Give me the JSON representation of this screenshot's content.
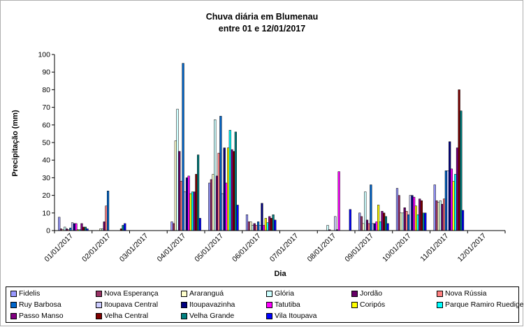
{
  "chart_data": {
    "type": "bar",
    "title": [
      "Chuva diária em Blumenau",
      "entre 01 e 12/01/2017"
    ],
    "xlabel": "Dia",
    "ylabel": "Precipitação (mm)",
    "ylim": [
      0,
      100
    ],
    "yticks": [
      0,
      10,
      20,
      30,
      40,
      50,
      60,
      70,
      80,
      90,
      100
    ],
    "grid": false,
    "legend_position": "bottom",
    "categories": [
      "01/01/2017",
      "02/01/2017",
      "03/01/2017",
      "04/01/2017",
      "05/01/2017",
      "06/01/2017",
      "07/01/2017",
      "08/01/2017",
      "09/01/2017",
      "10/01/2017",
      "11/01/2017",
      "12/01/2017"
    ],
    "series": [
      {
        "name": "Fidelis",
        "color": "#9999ff",
        "values": [
          7.6,
          0,
          0,
          5,
          27,
          9,
          0,
          0,
          10,
          24,
          26,
          0
        ]
      },
      {
        "name": "Nova Esperança",
        "color": "#993366",
        "values": [
          1,
          0,
          0,
          4,
          29,
          5,
          0,
          0,
          8,
          20,
          17,
          0
        ]
      },
      {
        "name": "Araranguá",
        "color": "#ffffcc",
        "values": [
          0.5,
          1,
          0,
          51,
          32,
          5,
          0,
          0,
          4,
          10,
          16,
          0
        ]
      },
      {
        "name": "Glória",
        "color": "#ccffff",
        "values": [
          2,
          1,
          0,
          69,
          63,
          3,
          0,
          3,
          22,
          10,
          17,
          0
        ]
      },
      {
        "name": "Jordão",
        "color": "#660066",
        "values": [
          1,
          5,
          0,
          45,
          31,
          4,
          0,
          0.5,
          6,
          13,
          15,
          0
        ]
      },
      {
        "name": "Nova Rússia",
        "color": "#ff8080",
        "values": [
          0.5,
          14,
          0,
          28,
          44,
          3,
          0,
          0,
          4,
          11,
          18,
          0
        ]
      },
      {
        "name": "Ruy Barbosa",
        "color": "#0066cc",
        "values": [
          1.5,
          22.5,
          0,
          95,
          65,
          5,
          0,
          0,
          26,
          9,
          34,
          0
        ]
      },
      {
        "name": "Itoupava Central",
        "color": "#ccccff",
        "values": [
          4.5,
          0,
          0,
          22,
          21,
          3,
          0,
          8,
          4,
          20,
          34,
          0
        ]
      },
      {
        "name": "Itoupavazinha",
        "color": "#000080",
        "values": [
          4,
          0,
          0,
          30,
          47,
          15.5,
          0,
          0.5,
          4,
          20,
          50.5,
          0
        ]
      },
      {
        "name": "Tatutiba",
        "color": "#ff00ff",
        "values": [
          4,
          0,
          0,
          31,
          27,
          3,
          0,
          33.5,
          5,
          19,
          35,
          0
        ]
      },
      {
        "name": "Coripós",
        "color": "#ffff00",
        "values": [
          0.5,
          0,
          0,
          21,
          47,
          7,
          0,
          0,
          14.5,
          14,
          28,
          0
        ]
      },
      {
        "name": "Parque Ramiro Ruediger",
        "color": "#00ffff",
        "values": [
          0.5,
          0,
          0,
          22,
          57,
          4.5,
          0,
          0,
          5,
          9,
          32,
          0
        ]
      },
      {
        "name": "Passo Manso",
        "color": "#800080",
        "values": [
          4,
          0,
          0,
          22,
          46,
          8,
          0,
          0,
          11,
          18,
          47,
          0
        ]
      },
      {
        "name": "Velha Central",
        "color": "#800000",
        "values": [
          2,
          1,
          0,
          32,
          45,
          7,
          0,
          0,
          10,
          17,
          80,
          0
        ]
      },
      {
        "name": "Velha Grande",
        "color": "#008080",
        "values": [
          2,
          3,
          0,
          43,
          56,
          9,
          0,
          0,
          8,
          10,
          68,
          0
        ]
      },
      {
        "name": "Vila Itoupava",
        "color": "#0000ff",
        "values": [
          1,
          4,
          0,
          7,
          14.5,
          6,
          0,
          12,
          4,
          10,
          11.5,
          0
        ]
      }
    ]
  }
}
